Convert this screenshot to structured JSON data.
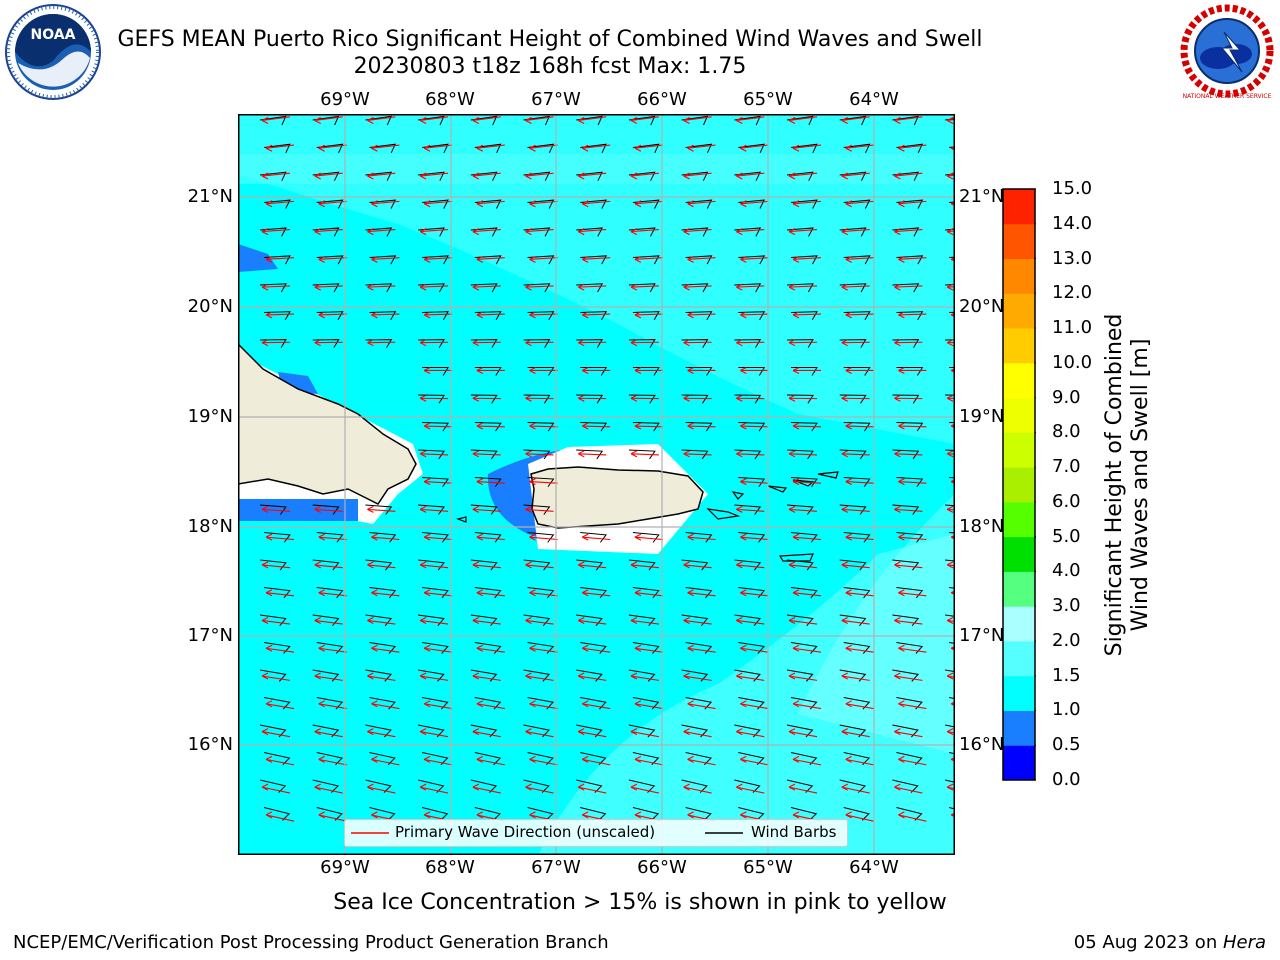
{
  "title_line1": "GEFS MEAN Puerto Rico Significant Height of Combined Wind Waves and Swell",
  "title_line2": "20230803 t18z 168h fcst   Max: 1.75",
  "logos": {
    "left": "NOAA",
    "right": "NATIONAL WEATHER SERVICE"
  },
  "map": {
    "lon_ticks": [
      "69°W",
      "68°W",
      "67°W",
      "66°W",
      "65°W",
      "64°W"
    ],
    "lat_ticks": [
      "21°N",
      "20°N",
      "19°N",
      "18°N",
      "17°N",
      "16°N"
    ],
    "lat_ticks_right": [
      "21°N",
      "20°N",
      "19°N",
      "18°N",
      "17°N",
      "16°N"
    ],
    "lon_range": [
      -70.0,
      -63.25
    ],
    "lat_range": [
      15.0,
      21.75
    ],
    "colors": {
      "ocean_main": "#00ffff",
      "ocean_light": "#55ffff",
      "shallow": "#1a7fff",
      "land": "#efedda",
      "gridline": "#b0b0b0"
    }
  },
  "legend": {
    "wave_label": "Primary Wave Direction (unscaled)",
    "barb_label": "Wind Barbs"
  },
  "colorbar": {
    "label_line1": "Significant Height of Combined",
    "label_line2": "Wind Waves and Swell [m]",
    "ticks": [
      "0.0",
      "0.5",
      "1.0",
      "1.5",
      "2.0",
      "3.0",
      "4.0",
      "5.0",
      "6.0",
      "7.0",
      "8.0",
      "9.0",
      "10.0",
      "11.0",
      "12.0",
      "13.0",
      "14.0",
      "15.0"
    ],
    "colors": [
      "#0000ff",
      "#1a7fff",
      "#00ffff",
      "#55ffff",
      "#aaffff",
      "#55ff80",
      "#00e000",
      "#55ff00",
      "#aaee00",
      "#ccff00",
      "#eeff00",
      "#ffff00",
      "#ffcc00",
      "#ffaa00",
      "#ff8800",
      "#ff5500",
      "#ff2200"
    ]
  },
  "note": "Sea Ice Concentration > 15% is shown in pink to yellow",
  "footer_left": "NCEP/EMC/Verification Post Processing Product Generation Branch",
  "footer_date": "05 Aug 2023 on ",
  "footer_host": "Hera"
}
